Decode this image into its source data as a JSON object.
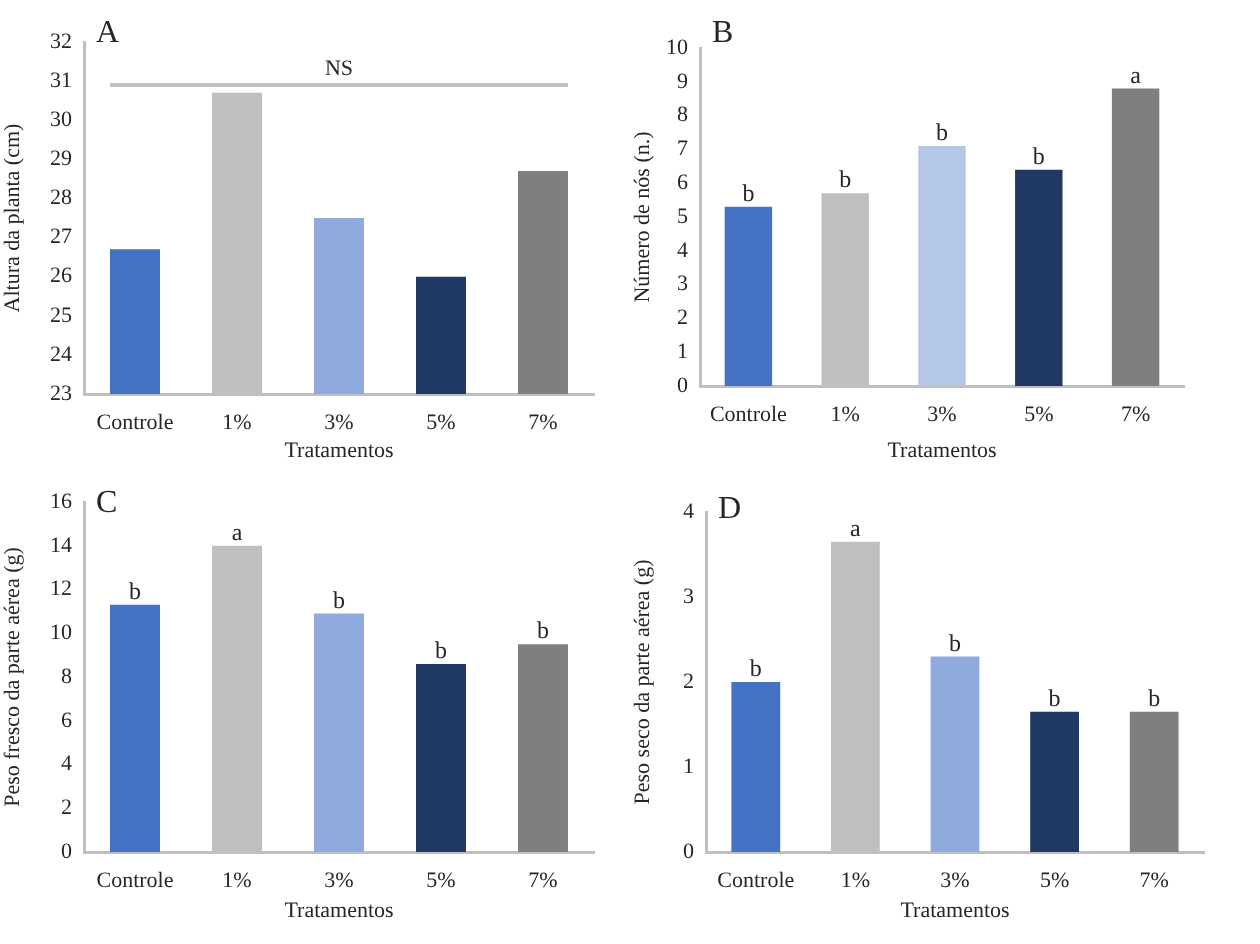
{
  "chart_data": [
    {
      "type": "bar",
      "title": "A",
      "xlabel": "Tratamentos",
      "ylabel": "Altura da planta (cm)",
      "categories": [
        "Controle",
        "1%",
        "3%",
        "5%",
        "7%"
      ],
      "values": [
        26.7,
        30.7,
        27.5,
        26.0,
        28.7
      ],
      "colors": [
        "#4472c4",
        "#bfbfbf",
        "#8faadc",
        "#203864",
        "#7f7f7f"
      ],
      "ylim": [
        23,
        32
      ],
      "yticks": [
        23,
        24,
        25,
        26,
        27,
        28,
        29,
        30,
        31,
        32
      ],
      "ref_lines": [
        {
          "axis": "y",
          "value": 30.9,
          "label": "NS",
          "color": "#bfbfbf"
        }
      ]
    },
    {
      "type": "bar",
      "title": "B",
      "xlabel": "Tratamentos",
      "ylabel": "Número de nós (n.)",
      "categories": [
        "Controle",
        "1%",
        "3%",
        "5%",
        "7%"
      ],
      "values": [
        5.3,
        5.7,
        7.1,
        6.4,
        8.8
      ],
      "colors": [
        "#4472c4",
        "#bfbfbf",
        "#b4c7e7",
        "#203864",
        "#7f7f7f"
      ],
      "ylim": [
        0,
        10
      ],
      "yticks": [
        0,
        1,
        2,
        3,
        4,
        5,
        6,
        7,
        8,
        9,
        10
      ],
      "value_labels": [
        "b",
        "b",
        "b",
        "b",
        "a"
      ]
    },
    {
      "type": "bar",
      "title": "C",
      "xlabel": "Tratamentos",
      "ylabel": "Peso fresco da parte aérea (g)",
      "categories": [
        "Controle",
        "1%",
        "3%",
        "5%",
        "7%"
      ],
      "values": [
        11.3,
        14.0,
        10.9,
        8.6,
        9.5
      ],
      "colors": [
        "#4472c4",
        "#bfbfbf",
        "#8faadc",
        "#203864",
        "#7f7f7f"
      ],
      "ylim": [
        0,
        16
      ],
      "yticks": [
        0,
        2,
        4,
        6,
        8,
        10,
        12,
        14,
        16
      ],
      "value_labels": [
        "b",
        "a",
        "b",
        "b",
        "b"
      ]
    },
    {
      "type": "bar",
      "title": "D",
      "xlabel": "Tratamentos",
      "ylabel": "Peso seco da parte aérea (g)",
      "categories": [
        "Controle",
        "1%",
        "3%",
        "5%",
        "7%"
      ],
      "values": [
        2.0,
        3.65,
        2.3,
        1.65,
        1.65
      ],
      "colors": [
        "#4472c4",
        "#bfbfbf",
        "#8faadc",
        "#203864",
        "#7f7f7f"
      ],
      "ylim": [
        0,
        4
      ],
      "yticks": [
        0,
        1,
        2,
        3,
        4
      ],
      "value_labels": [
        "b",
        "a",
        "b",
        "b",
        "b"
      ]
    }
  ]
}
